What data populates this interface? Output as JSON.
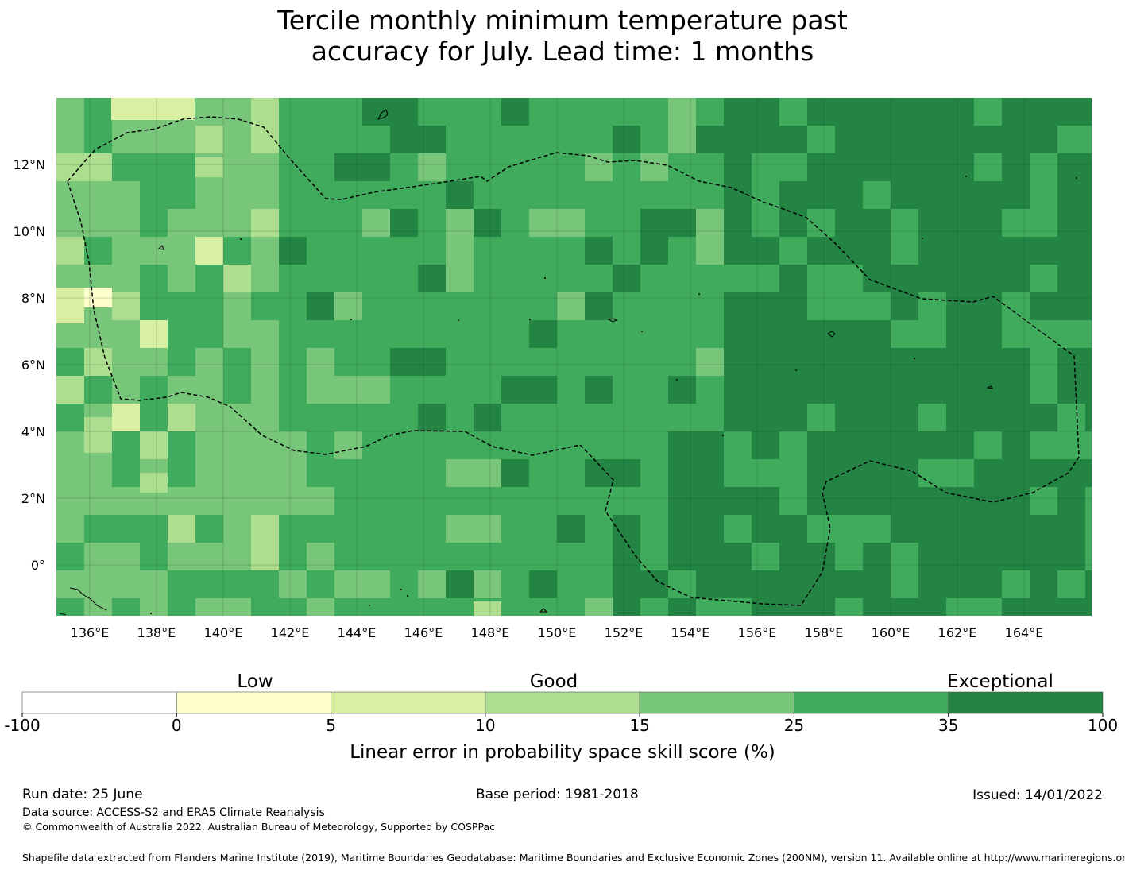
{
  "title": {
    "line1": "Tercile monthly minimum temperature past",
    "line2": "accuracy for July. Lead time: 1 months"
  },
  "map": {
    "lon_range": [
      135,
      166
    ],
    "lat_range": [
      -1.5,
      14
    ],
    "cell_deg": 0.83,
    "x_ticks": [
      "136°E",
      "138°E",
      "140°E",
      "142°E",
      "144°E",
      "146°E",
      "148°E",
      "150°E",
      "152°E",
      "154°E",
      "156°E",
      "158°E",
      "160°E",
      "162°E",
      "164°E"
    ],
    "y_ticks": [
      "12°N",
      "10°N",
      "8°N",
      "6°N",
      "4°N",
      "2°N",
      "0°"
    ],
    "eez_boundary": "dashed-black",
    "gridlines": true
  },
  "colorbar": {
    "categories": [
      "Low",
      "Good",
      "Exceptional"
    ],
    "ticks": [
      "-100",
      "0",
      "5",
      "10",
      "15",
      "25",
      "35",
      "100"
    ],
    "colors": [
      "#ffffff",
      "#ffffcc",
      "#d9f0a3",
      "#addd8e",
      "#78c679",
      "#41ab5d",
      "#238443"
    ],
    "label": "Linear error in probability space skill score (%)"
  },
  "footer": {
    "run_date": "Run date: 25 June",
    "base_period": "Base period: 1981-2018",
    "issued": "Issued: 14/01/2022",
    "data_source": "Data source: ACCESS-S2 and ERA5 Climate Reanalysis",
    "copyright": "© Commonwealth of Australia 2022, Australian Bureau of Meteorology, Supported by COSPPac",
    "shapefile": "Shapefile data extracted from Flanders Marine Institute (2019), Maritime Boundaries Geodatabase: Maritime Boundaries and Exclusive Economic Zones (200NM), version 11. Available online at http://www.marineregions.org/."
  }
}
